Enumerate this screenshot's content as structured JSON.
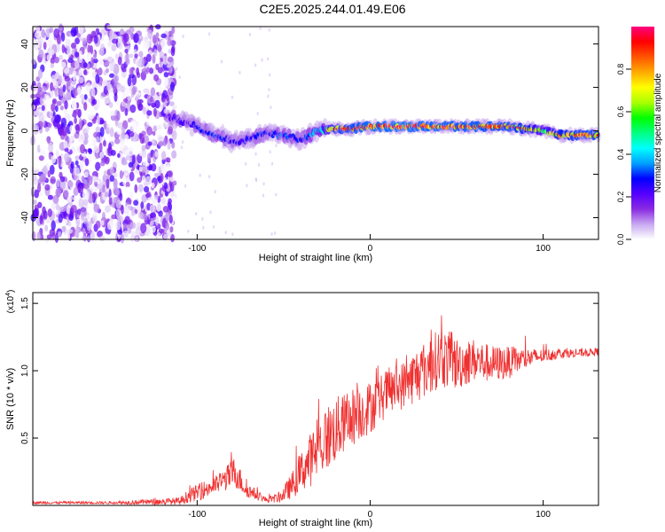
{
  "title": "C2E5.2025.244.01.49.E06",
  "chart_data": [
    {
      "type": "heatmap",
      "name": "spectrogram",
      "xlabel": "Height of straight line (km)",
      "ylabel": "Frequency (Hz)",
      "xlim": [
        -195,
        132
      ],
      "ylim": [
        -50,
        48
      ],
      "xticks": [
        -100,
        0,
        100
      ],
      "yticks": [
        -40,
        -20,
        0,
        20,
        40
      ],
      "colorbar": {
        "label": "Normalized spectral amplitude",
        "range": [
          0,
          1
        ],
        "ticks": [
          0.0,
          0.2,
          0.4,
          0.6,
          0.8
        ],
        "tick_labels": [
          "0.0",
          "0.2",
          "0.4",
          "0.6",
          "0.8"
        ],
        "colors": [
          "#ffffff",
          "#c8a8f0",
          "#8a2be2",
          "#5500ff",
          "#0000ff",
          "#00a0ff",
          "#00ffff",
          "#00ff80",
          "#00ff00",
          "#aaff00",
          "#ffff00",
          "#ffaa00",
          "#ff5500",
          "#ff0000",
          "#ff0080"
        ]
      },
      "ridge": {
        "x": [
          -117,
          -100,
          -90,
          -80,
          -70,
          -60,
          -50,
          -40,
          -30,
          -20,
          -10,
          0,
          20,
          40,
          60,
          80,
          90,
          100,
          110,
          120,
          132
        ],
        "freq": [
          7,
          2,
          -2,
          -5,
          -4,
          -1,
          -2,
          -4,
          0,
          1,
          1,
          2,
          2,
          2,
          2,
          2,
          1,
          0,
          -2,
          -2,
          -2
        ],
        "amplitude": [
          0.25,
          0.3,
          0.33,
          0.3,
          0.3,
          0.32,
          0.35,
          0.3,
          0.45,
          0.85,
          0.9,
          0.95,
          0.95,
          0.93,
          0.92,
          0.9,
          0.85,
          0.6,
          0.85,
          0.88,
          0.9
        ]
      },
      "noise_region_x": [
        -195,
        -113
      ]
    },
    {
      "type": "line",
      "name": "snr",
      "xlabel": "Height of straight line (km)",
      "ylabel": "SNR (10 * v/v)",
      "scale_label": "(x10",
      "scale_exponent": "4",
      "scale_suffix": ")",
      "xlim": [
        -195,
        132
      ],
      "ylim": [
        0,
        1.58
      ],
      "xticks": [
        -100,
        0,
        100
      ],
      "yticks": [
        0.5,
        1.0,
        1.5
      ],
      "ytick_labels": [
        "0.5",
        "1.0",
        "1.5"
      ],
      "series": [
        {
          "name": "SNR",
          "color": "#f03030",
          "x": [
            -195,
            -150,
            -110,
            -105,
            -95,
            -88,
            -82,
            -78,
            -72,
            -66,
            -60,
            -52,
            -45,
            -40,
            -35,
            -30,
            -25,
            -20,
            -15,
            -10,
            -5,
            0,
            5,
            10,
            20,
            30,
            35,
            40,
            45,
            50,
            60,
            70,
            80,
            90,
            100,
            110,
            120,
            132
          ],
          "mean": [
            0.02,
            0.02,
            0.03,
            0.07,
            0.12,
            0.16,
            0.21,
            0.25,
            0.12,
            0.08,
            0.04,
            0.06,
            0.15,
            0.25,
            0.33,
            0.42,
            0.5,
            0.56,
            0.61,
            0.66,
            0.69,
            0.73,
            0.78,
            0.84,
            0.9,
            1.0,
            1.04,
            1.1,
            1.08,
            1.05,
            1.08,
            1.05,
            1.06,
            1.09,
            1.11,
            1.13,
            1.13,
            1.14
          ],
          "jitter": [
            0.01,
            0.01,
            0.03,
            0.05,
            0.07,
            0.07,
            0.1,
            0.12,
            0.06,
            0.04,
            0.02,
            0.04,
            0.1,
            0.15,
            0.2,
            0.22,
            0.25,
            0.25,
            0.22,
            0.22,
            0.2,
            0.2,
            0.18,
            0.18,
            0.18,
            0.22,
            0.22,
            0.22,
            0.22,
            0.2,
            0.16,
            0.14,
            0.12,
            0.08,
            0.05,
            0.04,
            0.03,
            0.03
          ]
        }
      ]
    }
  ]
}
